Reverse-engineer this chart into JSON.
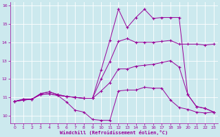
{
  "xlabel": "Windchill (Refroidissement éolien,°C)",
  "bg_color": "#cce9ee",
  "line_color": "#990099",
  "grid_color": "#ffffff",
  "xlim": [
    -0.5,
    23.5
  ],
  "ylim": [
    9.6,
    16.2
  ],
  "xticks": [
    0,
    1,
    2,
    3,
    4,
    5,
    6,
    7,
    8,
    9,
    10,
    11,
    12,
    13,
    14,
    15,
    16,
    17,
    18,
    19,
    20,
    21,
    22,
    23
  ],
  "yticks": [
    10,
    11,
    12,
    13,
    14,
    15,
    16
  ],
  "lines": [
    {
      "x": [
        0,
        1,
        2,
        3,
        4,
        5,
        6,
        7,
        8,
        9,
        10,
        11,
        12,
        13,
        14,
        15,
        16,
        17,
        18,
        19,
        20,
        21,
        22,
        23
      ],
      "y": [
        10.78,
        10.9,
        10.9,
        11.15,
        11.2,
        11.1,
        10.75,
        10.3,
        10.2,
        9.8,
        9.75,
        9.75,
        11.35,
        11.4,
        11.4,
        11.55,
        11.5,
        11.5,
        10.85,
        10.45,
        10.35,
        10.2,
        10.15,
        10.2
      ]
    },
    {
      "x": [
        0,
        1,
        2,
        3,
        4,
        5,
        6,
        7,
        8,
        9,
        10,
        11,
        12,
        13,
        14,
        15,
        16,
        17,
        18,
        19,
        20,
        21,
        22,
        23
      ],
      "y": [
        10.78,
        10.9,
        10.9,
        11.2,
        11.3,
        11.15,
        11.05,
        11.0,
        10.95,
        10.95,
        11.35,
        11.8,
        12.55,
        12.55,
        12.7,
        12.75,
        12.8,
        12.9,
        13.0,
        12.65,
        11.15,
        10.5,
        10.4,
        10.2
      ]
    },
    {
      "x": [
        0,
        1,
        2,
        3,
        4,
        5,
        6,
        7,
        8,
        9,
        10,
        11,
        12,
        13,
        14,
        15,
        16,
        17,
        18,
        19,
        20,
        21,
        22,
        23
      ],
      "y": [
        10.78,
        10.85,
        10.9,
        11.15,
        11.2,
        11.1,
        11.05,
        11.0,
        10.95,
        10.95,
        12.0,
        12.95,
        14.05,
        14.2,
        14.0,
        14.0,
        14.0,
        14.05,
        14.1,
        13.9,
        13.9,
        13.9,
        13.85,
        13.9
      ]
    },
    {
      "x": [
        0,
        1,
        2,
        3,
        4,
        5,
        6,
        7,
        8,
        9,
        10,
        11,
        12,
        13,
        14,
        15,
        16,
        17,
        18,
        19,
        20,
        21,
        22,
        23
      ],
      "y": [
        10.78,
        10.85,
        10.9,
        11.2,
        11.3,
        11.15,
        11.05,
        11.0,
        10.95,
        10.95,
        12.5,
        14.1,
        15.8,
        14.8,
        15.35,
        15.8,
        15.3,
        15.35,
        15.35,
        15.35,
        11.15,
        10.5,
        10.4,
        10.2
      ]
    }
  ]
}
